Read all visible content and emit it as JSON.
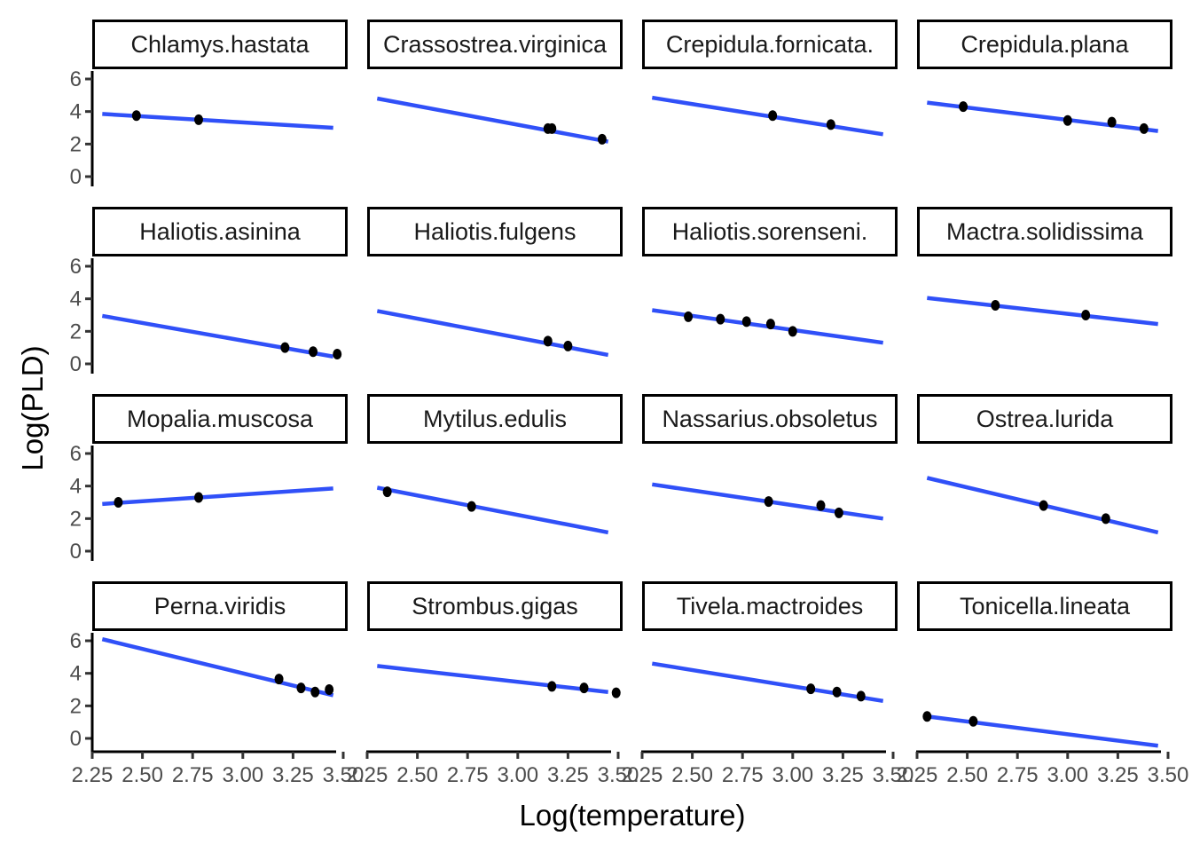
{
  "chart_data": {
    "type": "scatter",
    "title": "",
    "xlabel": "Log(temperature)",
    "ylabel": "Log(PLD)",
    "xlim": [
      2.25,
      3.5
    ],
    "ylim": [
      0,
      6
    ],
    "x_ticks": [
      "2.25",
      "2.50",
      "2.75",
      "3.00",
      "3.25",
      "3.50"
    ],
    "x_tick_values": [
      2.25,
      2.5,
      2.75,
      3.0,
      3.25,
      3.5
    ],
    "y_ticks": [
      "0",
      "2",
      "4",
      "6"
    ],
    "y_tick_values": [
      0,
      2,
      4,
      6
    ],
    "grid": false,
    "layout": "facet_wrap 4x4",
    "colors": {
      "points": "#000000",
      "fit_line": "#3050f8",
      "axis": "#000000",
      "strip_border": "#000000"
    },
    "panels": [
      {
        "name": "Chlamys.hastata",
        "points": [
          [
            2.47,
            3.75
          ],
          [
            2.78,
            3.5
          ]
        ],
        "fit": [
          [
            2.3,
            3.85
          ],
          [
            3.45,
            3.0
          ]
        ]
      },
      {
        "name": "Crassostrea.virginica",
        "points": [
          [
            3.15,
            2.95
          ],
          [
            3.17,
            2.95
          ],
          [
            3.42,
            2.3
          ]
        ],
        "fit": [
          [
            2.3,
            4.8
          ],
          [
            3.45,
            2.15
          ]
        ]
      },
      {
        "name": "Crepidula.fornicata.",
        "points": [
          [
            2.9,
            3.75
          ],
          [
            3.19,
            3.2
          ]
        ],
        "fit": [
          [
            2.3,
            4.85
          ],
          [
            3.45,
            2.6
          ]
        ]
      },
      {
        "name": "Crepidula.plana",
        "points": [
          [
            2.48,
            4.3
          ],
          [
            3.0,
            3.45
          ],
          [
            3.22,
            3.35
          ],
          [
            3.38,
            2.95
          ]
        ],
        "fit": [
          [
            2.3,
            4.55
          ],
          [
            3.45,
            2.8
          ]
        ]
      },
      {
        "name": "Haliotis.asinina",
        "points": [
          [
            3.21,
            1.0
          ],
          [
            3.35,
            0.75
          ],
          [
            3.47,
            0.6
          ]
        ],
        "fit": [
          [
            2.3,
            2.95
          ],
          [
            3.45,
            0.45
          ]
        ]
      },
      {
        "name": "Haliotis.fulgens",
        "points": [
          [
            3.15,
            1.4
          ],
          [
            3.25,
            1.1
          ]
        ],
        "fit": [
          [
            2.3,
            3.25
          ],
          [
            3.45,
            0.55
          ]
        ]
      },
      {
        "name": "Haliotis.sorenseni.",
        "points": [
          [
            2.48,
            2.9
          ],
          [
            2.64,
            2.75
          ],
          [
            2.77,
            2.6
          ],
          [
            2.89,
            2.45
          ],
          [
            3.0,
            2.0
          ]
        ],
        "fit": [
          [
            2.3,
            3.3
          ],
          [
            3.45,
            1.3
          ]
        ]
      },
      {
        "name": "Mactra.solidissima",
        "points": [
          [
            2.64,
            3.6
          ],
          [
            3.09,
            3.0
          ]
        ],
        "fit": [
          [
            2.3,
            4.05
          ],
          [
            3.45,
            2.45
          ]
        ]
      },
      {
        "name": "Mopalia.muscosa",
        "points": [
          [
            2.38,
            3.0
          ],
          [
            2.78,
            3.3
          ]
        ],
        "fit": [
          [
            2.3,
            2.9
          ],
          [
            3.45,
            3.85
          ]
        ]
      },
      {
        "name": "Mytilus.edulis",
        "points": [
          [
            2.35,
            3.65
          ],
          [
            2.77,
            2.75
          ]
        ],
        "fit": [
          [
            2.3,
            3.9
          ],
          [
            3.45,
            1.15
          ]
        ]
      },
      {
        "name": "Nassarius.obsoletus",
        "points": [
          [
            2.88,
            3.05
          ],
          [
            3.14,
            2.8
          ],
          [
            3.23,
            2.35
          ]
        ],
        "fit": [
          [
            2.3,
            4.1
          ],
          [
            3.45,
            2.0
          ]
        ]
      },
      {
        "name": "Ostrea.lurida",
        "points": [
          [
            2.88,
            2.8
          ],
          [
            3.19,
            2.0
          ]
        ],
        "fit": [
          [
            2.3,
            4.5
          ],
          [
            3.45,
            1.15
          ]
        ]
      },
      {
        "name": "Perna.viridis",
        "points": [
          [
            3.18,
            3.65
          ],
          [
            3.29,
            3.1
          ],
          [
            3.36,
            2.85
          ],
          [
            3.43,
            3.0
          ]
        ],
        "fit": [
          [
            2.3,
            6.1
          ],
          [
            3.45,
            2.65
          ]
        ]
      },
      {
        "name": "Strombus.gigas",
        "points": [
          [
            3.17,
            3.2
          ],
          [
            3.33,
            3.1
          ],
          [
            3.49,
            2.8
          ]
        ],
        "fit": [
          [
            2.3,
            4.45
          ],
          [
            3.45,
            2.85
          ]
        ]
      },
      {
        "name": "Tivela.mactroides",
        "points": [
          [
            3.09,
            3.05
          ],
          [
            3.22,
            2.85
          ],
          [
            3.34,
            2.6
          ]
        ],
        "fit": [
          [
            2.3,
            4.6
          ],
          [
            3.45,
            2.3
          ]
        ]
      },
      {
        "name": "Tonicella.lineata",
        "points": [
          [
            2.3,
            1.35
          ],
          [
            2.53,
            1.05
          ]
        ],
        "fit": [
          [
            2.3,
            1.35
          ],
          [
            3.45,
            -0.45
          ]
        ]
      }
    ]
  }
}
